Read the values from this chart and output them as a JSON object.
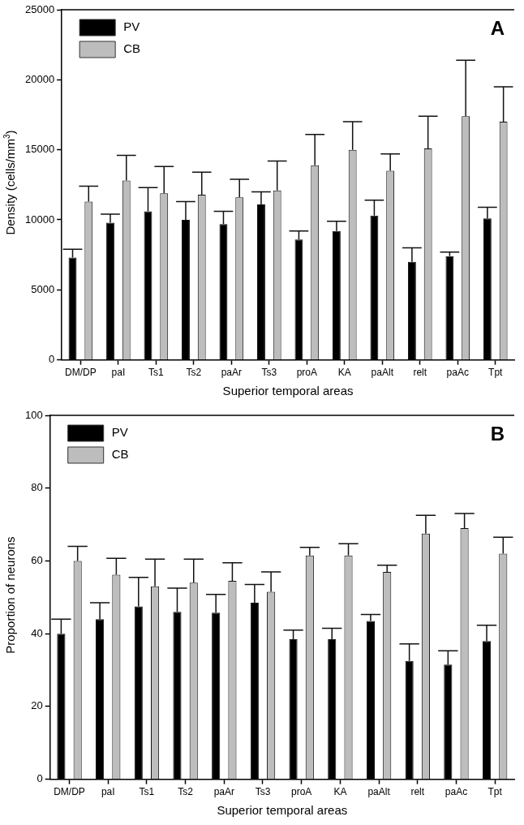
{
  "chart_data": [
    {
      "type": "bar",
      "title": "A",
      "xlabel": "Superior temporal areas",
      "ylabel": "Density (cells/mm$^{3}$)",
      "categories": [
        "DM/DP",
        "paI",
        "Ts1",
        "Ts2",
        "paAr",
        "Ts3",
        "proA",
        "KA",
        "paAlt",
        "relt",
        "paAc",
        "Tpt"
      ],
      "series": [
        {
          "name": "PV",
          "color": "#000000",
          "values": [
            7300,
            9800,
            10600,
            10000,
            9700,
            11100,
            8600,
            9200,
            10300,
            7000,
            7400,
            10100
          ],
          "errors": [
            [
              7300,
              7900
            ],
            [
              9800,
              10400
            ],
            [
              10600,
              12300
            ],
            [
              10000,
              11300
            ],
            [
              9700,
              10600
            ],
            [
              11100,
              12000
            ],
            [
              8600,
              9200
            ],
            [
              9200,
              9900
            ],
            [
              10300,
              11400
            ],
            [
              7000,
              8000
            ],
            [
              7400,
              7700
            ],
            [
              10100,
              10900
            ]
          ]
        },
        {
          "name": "CB",
          "color": "#bdbdbd",
          "values": [
            11300,
            12800,
            11900,
            11800,
            11600,
            12100,
            13900,
            15000,
            13500,
            15100,
            17400,
            17000
          ],
          "errors": [
            [
              11300,
              12400
            ],
            [
              12800,
              14600
            ],
            [
              11900,
              13800
            ],
            [
              11800,
              13400
            ],
            [
              11600,
              12900
            ],
            [
              12100,
              14200
            ],
            [
              13900,
              16100
            ],
            [
              15000,
              17000
            ],
            [
              13500,
              14700
            ],
            [
              15100,
              17400
            ],
            [
              17400,
              21400
            ],
            [
              17000,
              19500
            ]
          ]
        }
      ],
      "ylim": [
        0,
        25000
      ],
      "yticks": [
        0,
        5000,
        10000,
        15000,
        20000,
        25000
      ],
      "legend": "top left",
      "grid": false
    },
    {
      "type": "bar",
      "title": "B",
      "xlabel": "Superior temporal areas",
      "ylabel": "Proportion of neurons",
      "categories": [
        "DM/DP",
        "paI",
        "Ts1",
        "Ts2",
        "paAr",
        "Ts3",
        "proA",
        "KA",
        "paAlt",
        "relt",
        "paAc",
        "Tpt"
      ],
      "series": [
        {
          "name": "PV",
          "color": "#000000",
          "values": [
            40,
            44,
            47.5,
            46,
            45.8,
            48.5,
            38.5,
            38.5,
            43.5,
            32.5,
            31.5,
            38
          ],
          "errors": [
            [
              40,
              44
            ],
            [
              44,
              48.5
            ],
            [
              47.5,
              55.5
            ],
            [
              46,
              52.5
            ],
            [
              45.8,
              50.8
            ],
            [
              48.5,
              53.5
            ],
            [
              38.5,
              41
            ],
            [
              38.5,
              41.5
            ],
            [
              43.5,
              45.3
            ],
            [
              32.5,
              37.2
            ],
            [
              31.5,
              35.3
            ],
            [
              38,
              42.3
            ]
          ]
        },
        {
          "name": "CB",
          "color": "#bdbdbd",
          "values": [
            60,
            56.2,
            53,
            54,
            54.5,
            51.5,
            61.5,
            61.5,
            57,
            67.5,
            69,
            62
          ],
          "errors": [
            [
              60,
              64
            ],
            [
              56.2,
              60.7
            ],
            [
              53,
              60.5
            ],
            [
              54,
              60.5
            ],
            [
              54.5,
              59.5
            ],
            [
              51.5,
              57
            ],
            [
              61.5,
              63.7
            ],
            [
              61.5,
              64.7
            ],
            [
              57,
              58.8
            ],
            [
              67.5,
              72.5
            ],
            [
              69,
              73
            ],
            [
              62,
              66.5
            ]
          ]
        }
      ],
      "ylim": [
        0,
        100
      ],
      "yticks": [
        0,
        20,
        40,
        60,
        80,
        100
      ],
      "legend": "top left",
      "grid": false
    }
  ]
}
